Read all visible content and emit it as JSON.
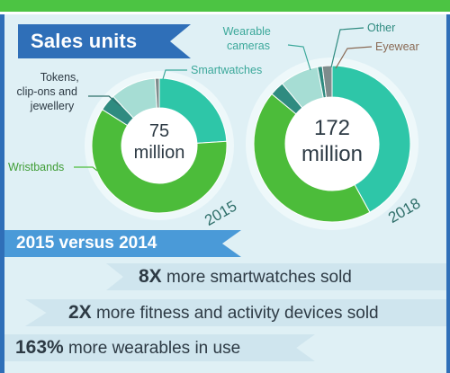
{
  "header": {
    "title": "Sales units"
  },
  "chart_data": [
    {
      "type": "pie",
      "year": "2015",
      "center_value": "75",
      "center_unit": "million",
      "slices": [
        {
          "label": "Smartwatches",
          "value": 24,
          "color": "#2ec6a8"
        },
        {
          "label": "Wristbands",
          "value": 60,
          "color": "#4cbc3a"
        },
        {
          "label": "Tokens,\nclip-ons and\njewellery",
          "value": 4,
          "color": "#2f8b80"
        },
        {
          "label": "",
          "value": 11,
          "color": "#a6ddd4"
        },
        {
          "label": "",
          "value": 1,
          "color": "#7e8c8c"
        }
      ]
    },
    {
      "type": "pie",
      "year": "2018",
      "center_value": "172",
      "center_unit": "million",
      "slices": [
        {
          "label": "Smartwatches",
          "value": 42,
          "color": "#2ec6a8"
        },
        {
          "label": "Wristbands",
          "value": 44,
          "color": "#4cbc3a"
        },
        {
          "label": "Tokens, clip-ons and jewellery",
          "value": 3,
          "color": "#2f8b80"
        },
        {
          "label": "Wearable\ncameras",
          "value": 8,
          "color": "#a6ddd4"
        },
        {
          "label": "Other",
          "value": 1,
          "color": "#2f8b80"
        },
        {
          "label": "Eyewear",
          "value": 2,
          "color": "#7e8c8c"
        }
      ]
    }
  ],
  "comparison": {
    "heading": "2015 versus 2014",
    "rows": [
      {
        "figure": "8X",
        "text": "more smartwatches sold"
      },
      {
        "figure": "2X",
        "text": "more fitness and activity devices sold"
      },
      {
        "figure": "163%",
        "text": "more wearables in use"
      }
    ]
  }
}
